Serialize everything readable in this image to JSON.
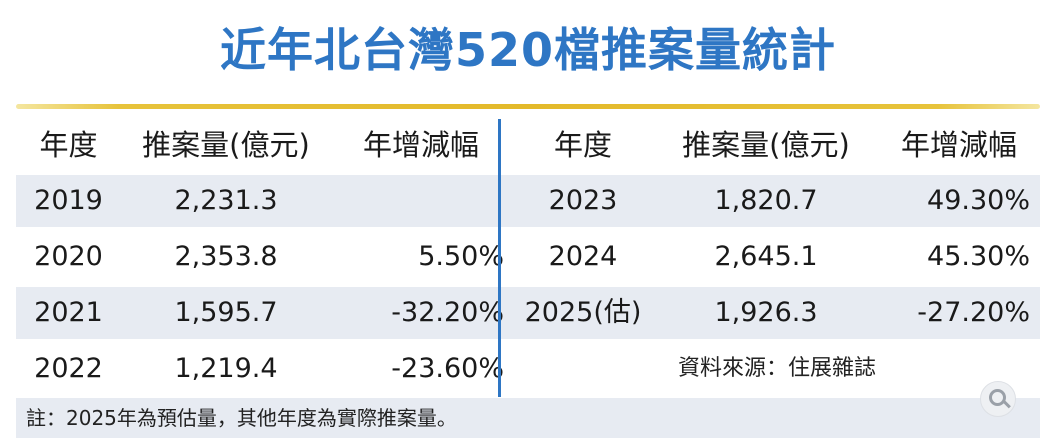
{
  "title": "近年北台灣520檔推案量統計",
  "headers": {
    "left": [
      "年度",
      "推案量(億元)",
      "年增減幅"
    ],
    "right": [
      "年度",
      "推案量(億元)",
      "年增減幅"
    ]
  },
  "left_rows": [
    {
      "year": "2019",
      "amount": "2,231.3",
      "change": ""
    },
    {
      "year": "2020",
      "amount": "2,353.8",
      "change": "5.50%"
    },
    {
      "year": "2021",
      "amount": "1,595.7",
      "change": "-32.20%"
    },
    {
      "year": "2022",
      "amount": "1,219.4",
      "change": "-23.60%"
    }
  ],
  "right_rows": [
    {
      "year": "2023",
      "amount": "1,820.7",
      "change": "49.30%"
    },
    {
      "year": "2024",
      "amount": "2,645.1",
      "change": "45.30%"
    },
    {
      "year": "2025(估)",
      "amount": "1,926.3",
      "change": "-27.20%"
    }
  ],
  "source": "資料來源：住展雜誌",
  "note": "註：2025年為預估量，其他年度為實際推案量。",
  "colors": {
    "title": "#2e76c4",
    "accent_line": "#e3b92a",
    "row_shade": "#e7ebf2",
    "divider": "#2e76c4"
  },
  "icons": {
    "zoom": "zoom-in-icon"
  }
}
